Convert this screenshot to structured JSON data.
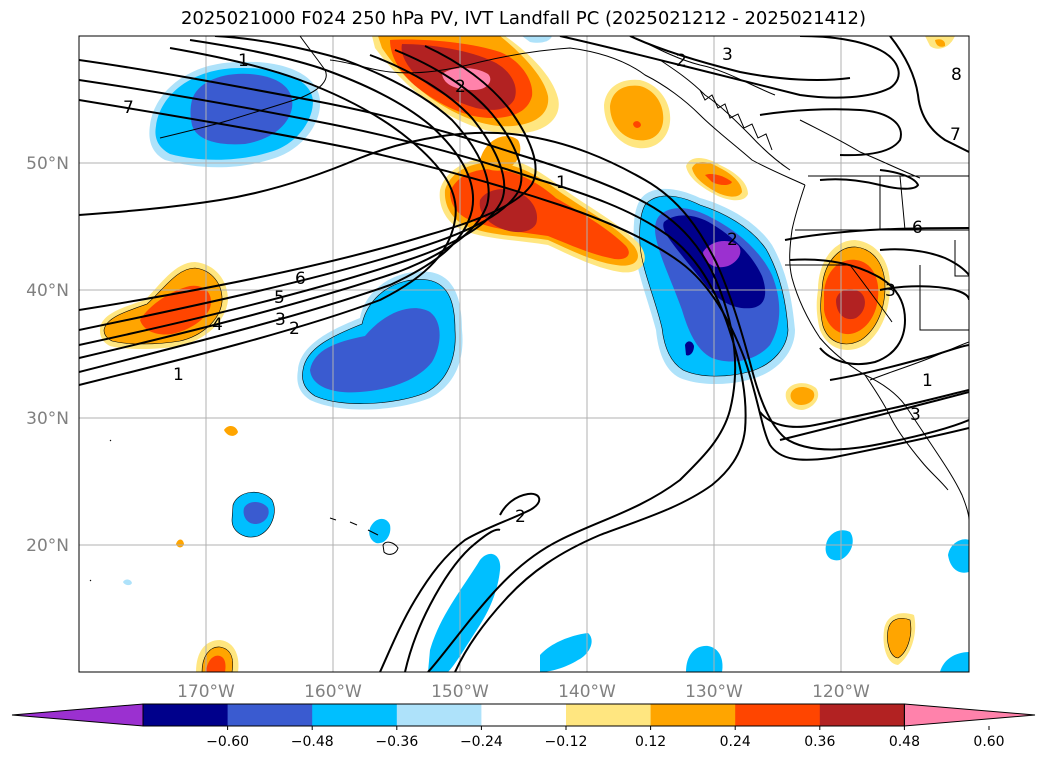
{
  "title": "2025021000 F024 250 hPa PV, IVT Landfall PC (2025021212 - 2025021412)",
  "colors": {
    "c_neg_0_72": "#9b30d0",
    "c_neg_0_60": "#00008b",
    "c_neg_0_48": "#3a5bd0",
    "c_neg_0_36": "#00bfff",
    "c_neg_0_24": "#aee2fa",
    "c_neutral": "#ffffff",
    "c_pos_0_12": "#ffe680",
    "c_pos_0_24": "#ffa500",
    "c_pos_0_36": "#ff4500",
    "c_pos_0_48": "#b22222",
    "c_pos_0_60": "#ff82ab",
    "grid": "#b0b0b0",
    "contour": "#000000",
    "coast": "#000000"
  },
  "map": {
    "lon_range": [
      -180,
      -110
    ],
    "lat_range": [
      10,
      60
    ],
    "projection": "cylindrical",
    "grid": true,
    "lat_ticks": [
      "20°N",
      "30°N",
      "40°N",
      "50°N"
    ],
    "lon_ticks": [
      "170°W",
      "160°W",
      "150°W",
      "140°W",
      "130°W",
      "120°W"
    ],
    "contour_labels": [
      "1",
      "2",
      "3",
      "4",
      "5",
      "6",
      "7",
      "1",
      "2",
      "3",
      "2",
      "1",
      "2",
      "8",
      "7",
      "6",
      "3",
      "1",
      "3",
      "2"
    ]
  },
  "colorbar": {
    "tick_labels": [
      "−0.60",
      "−0.48",
      "−0.36",
      "−0.24",
      "−0.12",
      "0.12",
      "0.24",
      "0.36",
      "0.48",
      "0.60"
    ],
    "colors": [
      "#9b30d0",
      "#00008b",
      "#3a5bd0",
      "#00bfff",
      "#aee2fa",
      "#ffffff",
      "#ffe680",
      "#ffa500",
      "#ff4500",
      "#b22222",
      "#ff82ab"
    ],
    "extend": "both"
  }
}
